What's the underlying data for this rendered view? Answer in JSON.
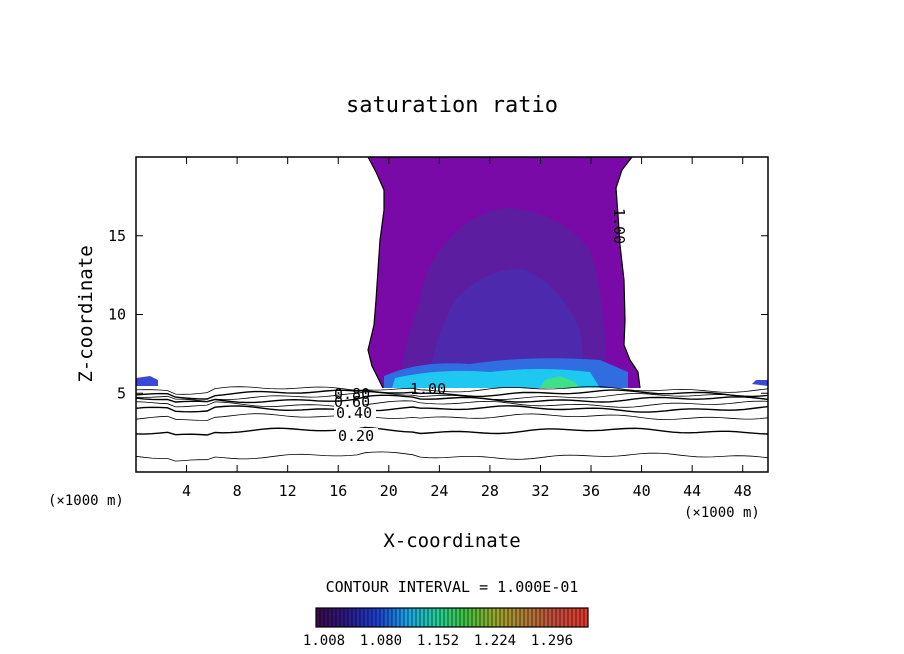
{
  "chart_data": {
    "type": "contour",
    "title": "saturation ratio",
    "xlabel": "X-coordinate",
    "ylabel": "Z-coordinate",
    "x_unit_note": "(×1000 m)",
    "xlim": [
      0,
      50
    ],
    "ylim": [
      0,
      20
    ],
    "x_ticks": [
      4,
      8,
      12,
      16,
      20,
      24,
      28,
      32,
      36,
      40,
      44,
      48
    ],
    "y_ticks": [
      5,
      10,
      15
    ],
    "contour_interval_text": "CONTOUR INTERVAL = 1.000E-01",
    "contour_line_labels": [
      "0.20",
      "0.40",
      "0.60",
      "0.80",
      "1.00",
      "1.00"
    ],
    "contour_levels": [
      {
        "level": 0.1,
        "z": 1.0
      },
      {
        "level": 0.2,
        "z": 2.6
      },
      {
        "level": 0.3,
        "z": 3.5
      },
      {
        "level": 0.4,
        "z": 4.0
      },
      {
        "level": 0.5,
        "z": 4.3
      },
      {
        "level": 0.6,
        "z": 4.6
      },
      {
        "level": 0.7,
        "z": 4.8
      },
      {
        "level": 0.8,
        "z": 5.0
      },
      {
        "level": 0.9,
        "z": 5.25
      }
    ],
    "colorbar": {
      "ticks": [
        "1.008",
        "1.080",
        "1.152",
        "1.224",
        "1.296"
      ],
      "colors": [
        "#3b0b4a",
        "#2a1a8a",
        "#1d3fd0",
        "#18a6e8",
        "#22cf9a",
        "#40c23c",
        "#9aa62a",
        "#b07a36",
        "#c24a3c",
        "#e03b2a"
      ]
    },
    "fill_colors": {
      "supersat": "#7a0aa8",
      "deep": "#5a1fa0",
      "deeper": "#4a2bb0",
      "edge_blue": "#2f6de0",
      "edge_cyan": "#1fc8f0",
      "edge_green": "#3fe08a",
      "side_blob": "#3a48d8"
    }
  }
}
